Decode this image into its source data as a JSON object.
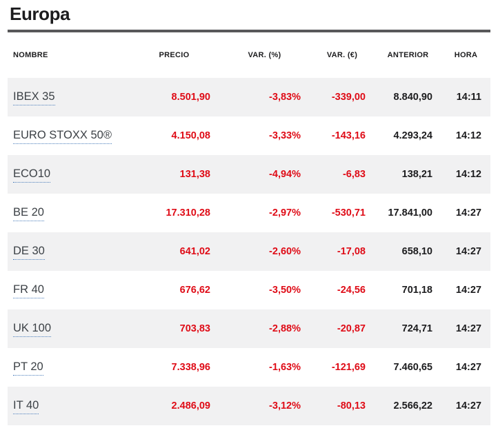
{
  "page": {
    "title": "Europa"
  },
  "colors": {
    "negative": "#df0c17",
    "row_alt_bg": "#f1f1f2",
    "text_dark": "#1c1c1e",
    "rule": "#58585a",
    "link_underline": "#4a7dbb"
  },
  "table": {
    "columns": [
      {
        "key": "nombre",
        "label": "NOMBRE"
      },
      {
        "key": "precio",
        "label": "PRECIO"
      },
      {
        "key": "var_pct",
        "label": "VAR. (%)"
      },
      {
        "key": "var_eur",
        "label": "VAR. (€)"
      },
      {
        "key": "anterior",
        "label": "ANTERIOR"
      },
      {
        "key": "hora",
        "label": "HORA"
      }
    ],
    "rows": [
      {
        "nombre": "IBEX 35",
        "precio": "8.501,90",
        "var_pct": "-3,83%",
        "var_eur": "-339,00",
        "anterior": "8.840,90",
        "hora": "14:11"
      },
      {
        "nombre": "EURO STOXX 50®",
        "precio": "4.150,08",
        "var_pct": "-3,33%",
        "var_eur": "-143,16",
        "anterior": "4.293,24",
        "hora": "14:12"
      },
      {
        "nombre": "ECO10",
        "precio": "131,38",
        "var_pct": "-4,94%",
        "var_eur": "-6,83",
        "anterior": "138,21",
        "hora": "14:12"
      },
      {
        "nombre": "BE 20",
        "precio": "17.310,28",
        "var_pct": "-2,97%",
        "var_eur": "-530,71",
        "anterior": "17.841,00",
        "hora": "14:27"
      },
      {
        "nombre": "DE 30",
        "precio": "641,02",
        "var_pct": "-2,60%",
        "var_eur": "-17,08",
        "anterior": "658,10",
        "hora": "14:27"
      },
      {
        "nombre": "FR 40",
        "precio": "676,62",
        "var_pct": "-3,50%",
        "var_eur": "-24,56",
        "anterior": "701,18",
        "hora": "14:27"
      },
      {
        "nombre": "UK 100",
        "precio": "703,83",
        "var_pct": "-2,88%",
        "var_eur": "-20,87",
        "anterior": "724,71",
        "hora": "14:27"
      },
      {
        "nombre": "PT 20",
        "precio": "7.338,96",
        "var_pct": "-1,63%",
        "var_eur": "-121,69",
        "anterior": "7.460,65",
        "hora": "14:27"
      },
      {
        "nombre": "IT 40",
        "precio": "2.486,09",
        "var_pct": "-3,12%",
        "var_eur": "-80,13",
        "anterior": "2.566,22",
        "hora": "14:27"
      }
    ]
  }
}
